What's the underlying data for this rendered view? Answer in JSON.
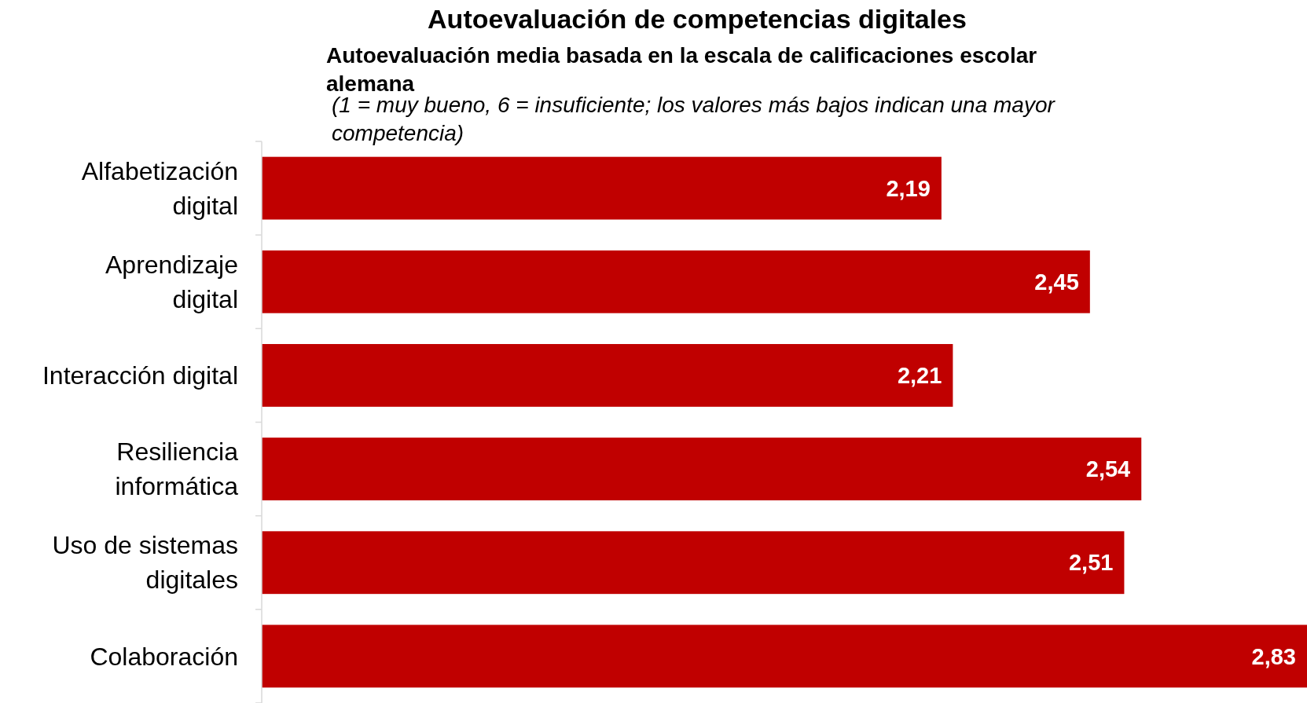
{
  "chart_data": {
    "type": "bar",
    "orientation": "horizontal",
    "title": "Autoevaluación de competencias digitales",
    "subtitle": "Autoevaluación media basada en la escala de calificaciones escolar alemana",
    "annotations": [
      "(1 = muy bueno, 6 = insuficiente; los valores más bajos indican una mayor competencia)"
    ],
    "categories": [
      "Alfabetización digital",
      "Aprendizaje digital",
      "Interacción digital",
      "Resiliencia informática",
      "Uso de sistemas digitales",
      "Colaboración"
    ],
    "values": [
      2.19,
      2.45,
      2.21,
      2.54,
      2.51,
      2.83
    ],
    "value_labels": [
      "2,19",
      "2,45",
      "2,21",
      "2,54",
      "2,51",
      "2,83"
    ],
    "color": "#c00000",
    "xlim": [
      1,
      2.83
    ],
    "tick_labels": "y"
  }
}
